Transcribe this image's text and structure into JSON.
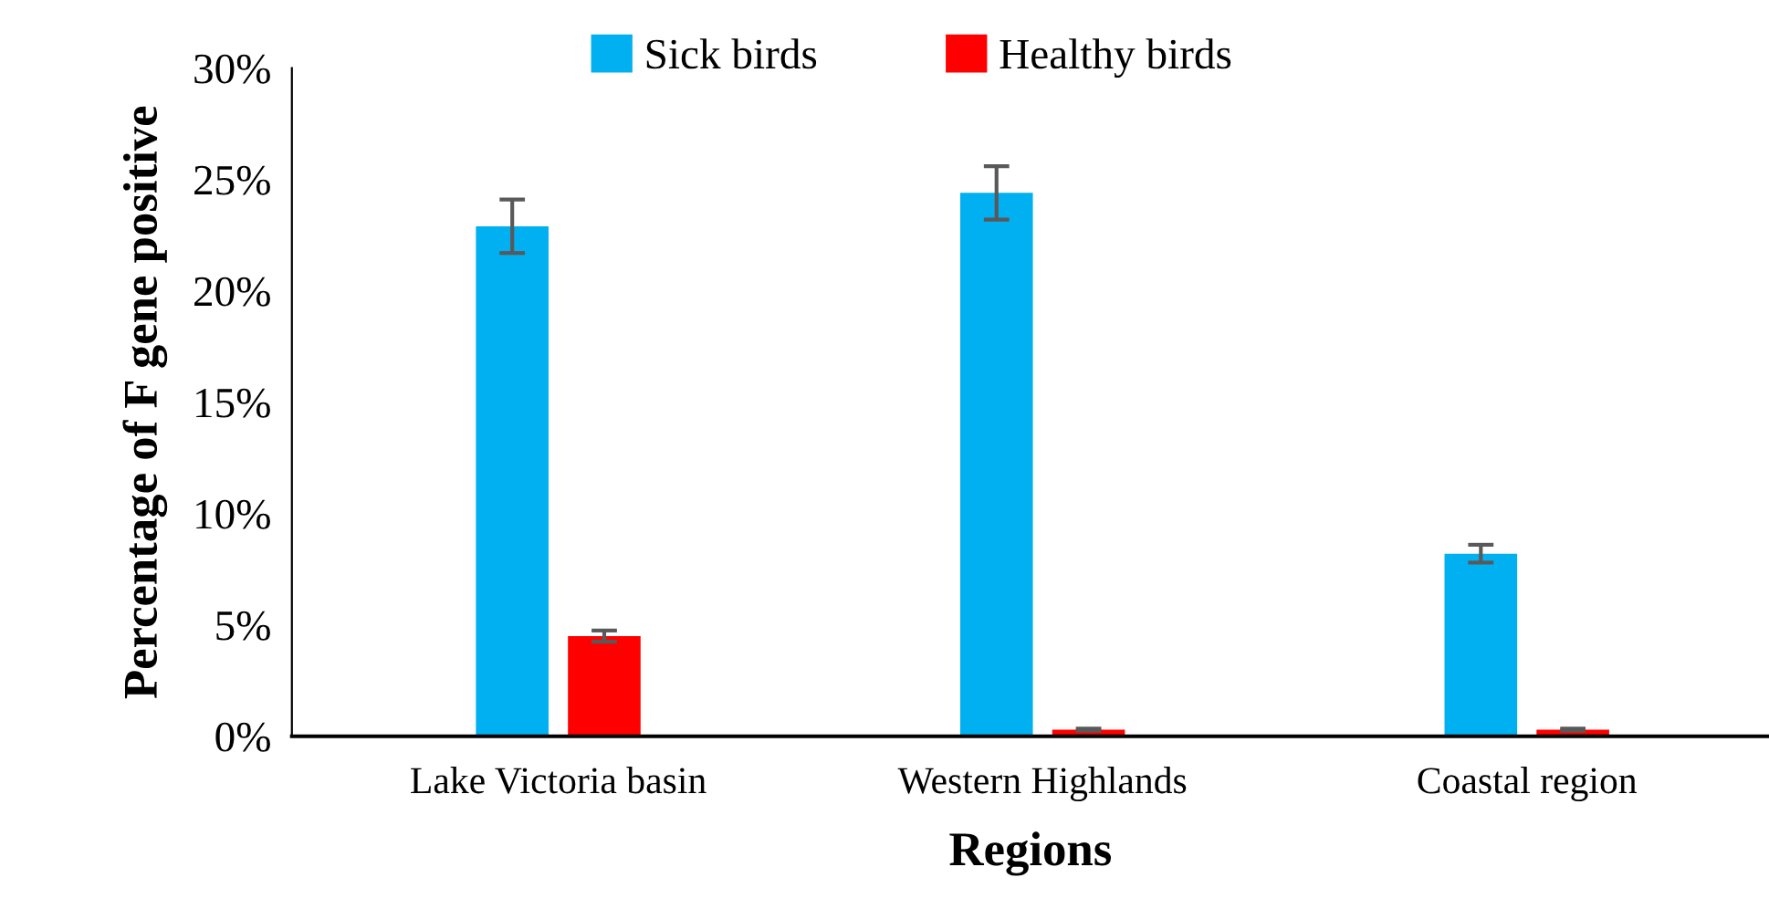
{
  "chart_data": {
    "type": "bar",
    "categories": [
      "Lake Victoria basin",
      "Western Highlands",
      "Coastal region"
    ],
    "series": [
      {
        "name": "Sick birds",
        "color": "#00b0f0",
        "values": [
          22.9,
          24.4,
          8.2
        ],
        "errors": [
          1.2,
          1.2,
          0.4
        ]
      },
      {
        "name": "Healthy birds",
        "color": "#ff0000",
        "values": [
          4.5,
          0.3,
          0.3
        ],
        "errors": [
          0.25,
          0.05,
          0.05
        ]
      }
    ],
    "xlabel": "Regions",
    "ylabel": "Percentage of F gene positive",
    "ylim": [
      0,
      30
    ],
    "yticks": [
      {
        "value": 0,
        "label": "0%"
      },
      {
        "value": 5,
        "label": "5%"
      },
      {
        "value": 10,
        "label": "10%"
      },
      {
        "value": 15,
        "label": "15%"
      },
      {
        "value": 20,
        "label": "20%"
      },
      {
        "value": 25,
        "label": "25%"
      },
      {
        "value": 30,
        "label": "30%"
      }
    ],
    "grid": false,
    "legend": "top"
  }
}
